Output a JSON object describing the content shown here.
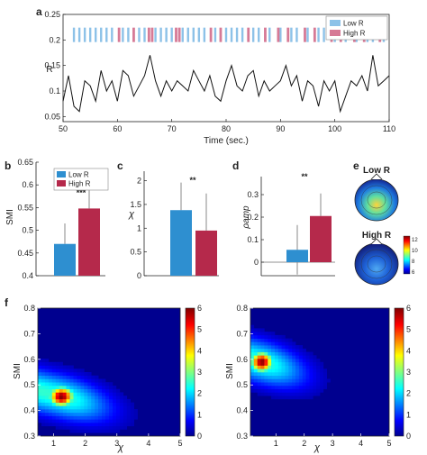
{
  "colors": {
    "low": "#2E8FD0",
    "high": "#B5294B",
    "line": "#111111",
    "lowStripe": "#8DC2E8",
    "highStripe": "#D67A96"
  },
  "labels": {
    "a": "a",
    "b": "b",
    "c": "c",
    "d": "d",
    "e": "e",
    "f": "f",
    "legend_low": "Low R",
    "legend_high": "High R",
    "topo_low": "Low R",
    "topo_high": "High R"
  },
  "chart_data": [
    {
      "id": "a",
      "type": "line",
      "xlabel": "Time (sec.)",
      "ylabel": "R",
      "xlim": [
        50,
        110
      ],
      "ylim": [
        0.04,
        0.25
      ],
      "xticks": [
        "50",
        "60",
        "70",
        "80",
        "90",
        "100",
        "110"
      ],
      "yticks": [
        "0.05",
        "0.1",
        "0.15",
        "0.2",
        "0.25"
      ],
      "x": [
        50,
        51,
        52,
        53,
        54,
        55,
        56,
        57,
        58,
        59,
        60,
        61,
        62,
        63,
        64,
        65,
        66,
        67,
        68,
        69,
        70,
        71,
        72,
        73,
        74,
        75,
        76,
        77,
        78,
        79,
        80,
        81,
        82,
        83,
        84,
        85,
        86,
        87,
        88,
        89,
        90,
        91,
        92,
        93,
        94,
        95,
        96,
        97,
        98,
        99,
        100,
        101,
        102,
        103,
        104,
        105,
        106,
        107,
        108,
        109,
        110
      ],
      "y": [
        0.08,
        0.13,
        0.07,
        0.06,
        0.12,
        0.11,
        0.08,
        0.14,
        0.1,
        0.12,
        0.08,
        0.14,
        0.13,
        0.09,
        0.11,
        0.13,
        0.17,
        0.12,
        0.09,
        0.12,
        0.1,
        0.12,
        0.11,
        0.1,
        0.14,
        0.12,
        0.1,
        0.13,
        0.09,
        0.08,
        0.12,
        0.15,
        0.11,
        0.1,
        0.13,
        0.14,
        0.09,
        0.12,
        0.1,
        0.11,
        0.12,
        0.15,
        0.11,
        0.13,
        0.08,
        0.12,
        0.11,
        0.07,
        0.12,
        0.1,
        0.12,
        0.06,
        0.09,
        0.12,
        0.11,
        0.13,
        0.1,
        0.17,
        0.11,
        0.12,
        0.13
      ],
      "stripe_y": 0.21,
      "legend": [
        "Low R",
        "High R"
      ],
      "high_x": [
        60.3,
        63,
        65.8,
        66.4,
        70.8,
        71.4,
        77.2,
        79,
        84.1,
        87.2,
        89.6,
        91.4,
        94.5,
        96.3,
        99.4,
        101.1,
        103.6,
        105.4,
        108.3
      ],
      "low_x": [
        52,
        53,
        54,
        55,
        56,
        57,
        58,
        59,
        61,
        62,
        64,
        65,
        67,
        68,
        69,
        70,
        72,
        73,
        74,
        75,
        76,
        78,
        80,
        81,
        82,
        83,
        85,
        86,
        88,
        90,
        92,
        93,
        95,
        97,
        98,
        100,
        102,
        104,
        106,
        107,
        109
      ]
    },
    {
      "id": "b",
      "type": "bar",
      "ylabel": "SMI",
      "ylim": [
        0.4,
        0.65
      ],
      "yticks": [
        "0.4",
        "0.45",
        "0.5",
        "0.55",
        "0.6",
        "0.65"
      ],
      "categories": [
        "Low R",
        "High R"
      ],
      "values": [
        0.47,
        0.548
      ],
      "err": [
        0.045,
        0.04
      ],
      "significance": "***",
      "legend": [
        "Low R",
        "High R"
      ]
    },
    {
      "id": "c",
      "type": "bar",
      "ylabel": "χ",
      "ylim": [
        0,
        2.2
      ],
      "yticks": [
        "0",
        "0.5",
        "1",
        "1.5",
        "2"
      ],
      "categories": [
        "Low R",
        "High R"
      ],
      "values": [
        1.38,
        0.95
      ],
      "err": [
        0.58,
        0.78
      ],
      "significance": "**"
    },
    {
      "id": "d",
      "type": "bar",
      "ylabel": "ρamp",
      "ylim": [
        -0.06,
        0.38
      ],
      "yticks": [
        "0",
        "0.1",
        "0.2",
        "0.3"
      ],
      "categories": [
        "Low R",
        "High R"
      ],
      "values": [
        0.055,
        0.205
      ],
      "err": [
        0.11,
        0.1
      ],
      "significance": "**"
    },
    {
      "id": "f1",
      "type": "heatmap",
      "xlabel": "χ",
      "ylabel": "SMI",
      "xlim": [
        0.5,
        5
      ],
      "ylim": [
        0.3,
        0.8
      ],
      "xticks": [
        "1",
        "2",
        "3",
        "4",
        "5"
      ],
      "yticks": [
        "0.3",
        "0.4",
        "0.5",
        "0.6",
        "0.7",
        "0.8"
      ],
      "colorbar": [
        "0",
        "1",
        "2",
        "3",
        "4",
        "5",
        "6"
      ],
      "zlim": [
        0,
        6
      ],
      "peak": {
        "x": 1.25,
        "y": 0.455,
        "z": 6
      }
    },
    {
      "id": "f2",
      "type": "heatmap",
      "xlabel": "χ",
      "ylabel": "SMI",
      "xlim": [
        0.1,
        5
      ],
      "ylim": [
        0.3,
        0.8
      ],
      "xticks": [
        "1",
        "2",
        "3",
        "4",
        "5"
      ],
      "yticks": [
        "0.3",
        "0.4",
        "0.5",
        "0.6",
        "0.7",
        "0.8"
      ],
      "colorbar": [
        "0",
        "1",
        "2",
        "3",
        "4",
        "5",
        "6"
      ],
      "zlim": [
        0,
        6
      ],
      "peak": {
        "x": 0.5,
        "y": 0.59,
        "z": 6
      }
    }
  ],
  "topo_colorbar": [
    "12",
    "10",
    "8",
    "6"
  ]
}
